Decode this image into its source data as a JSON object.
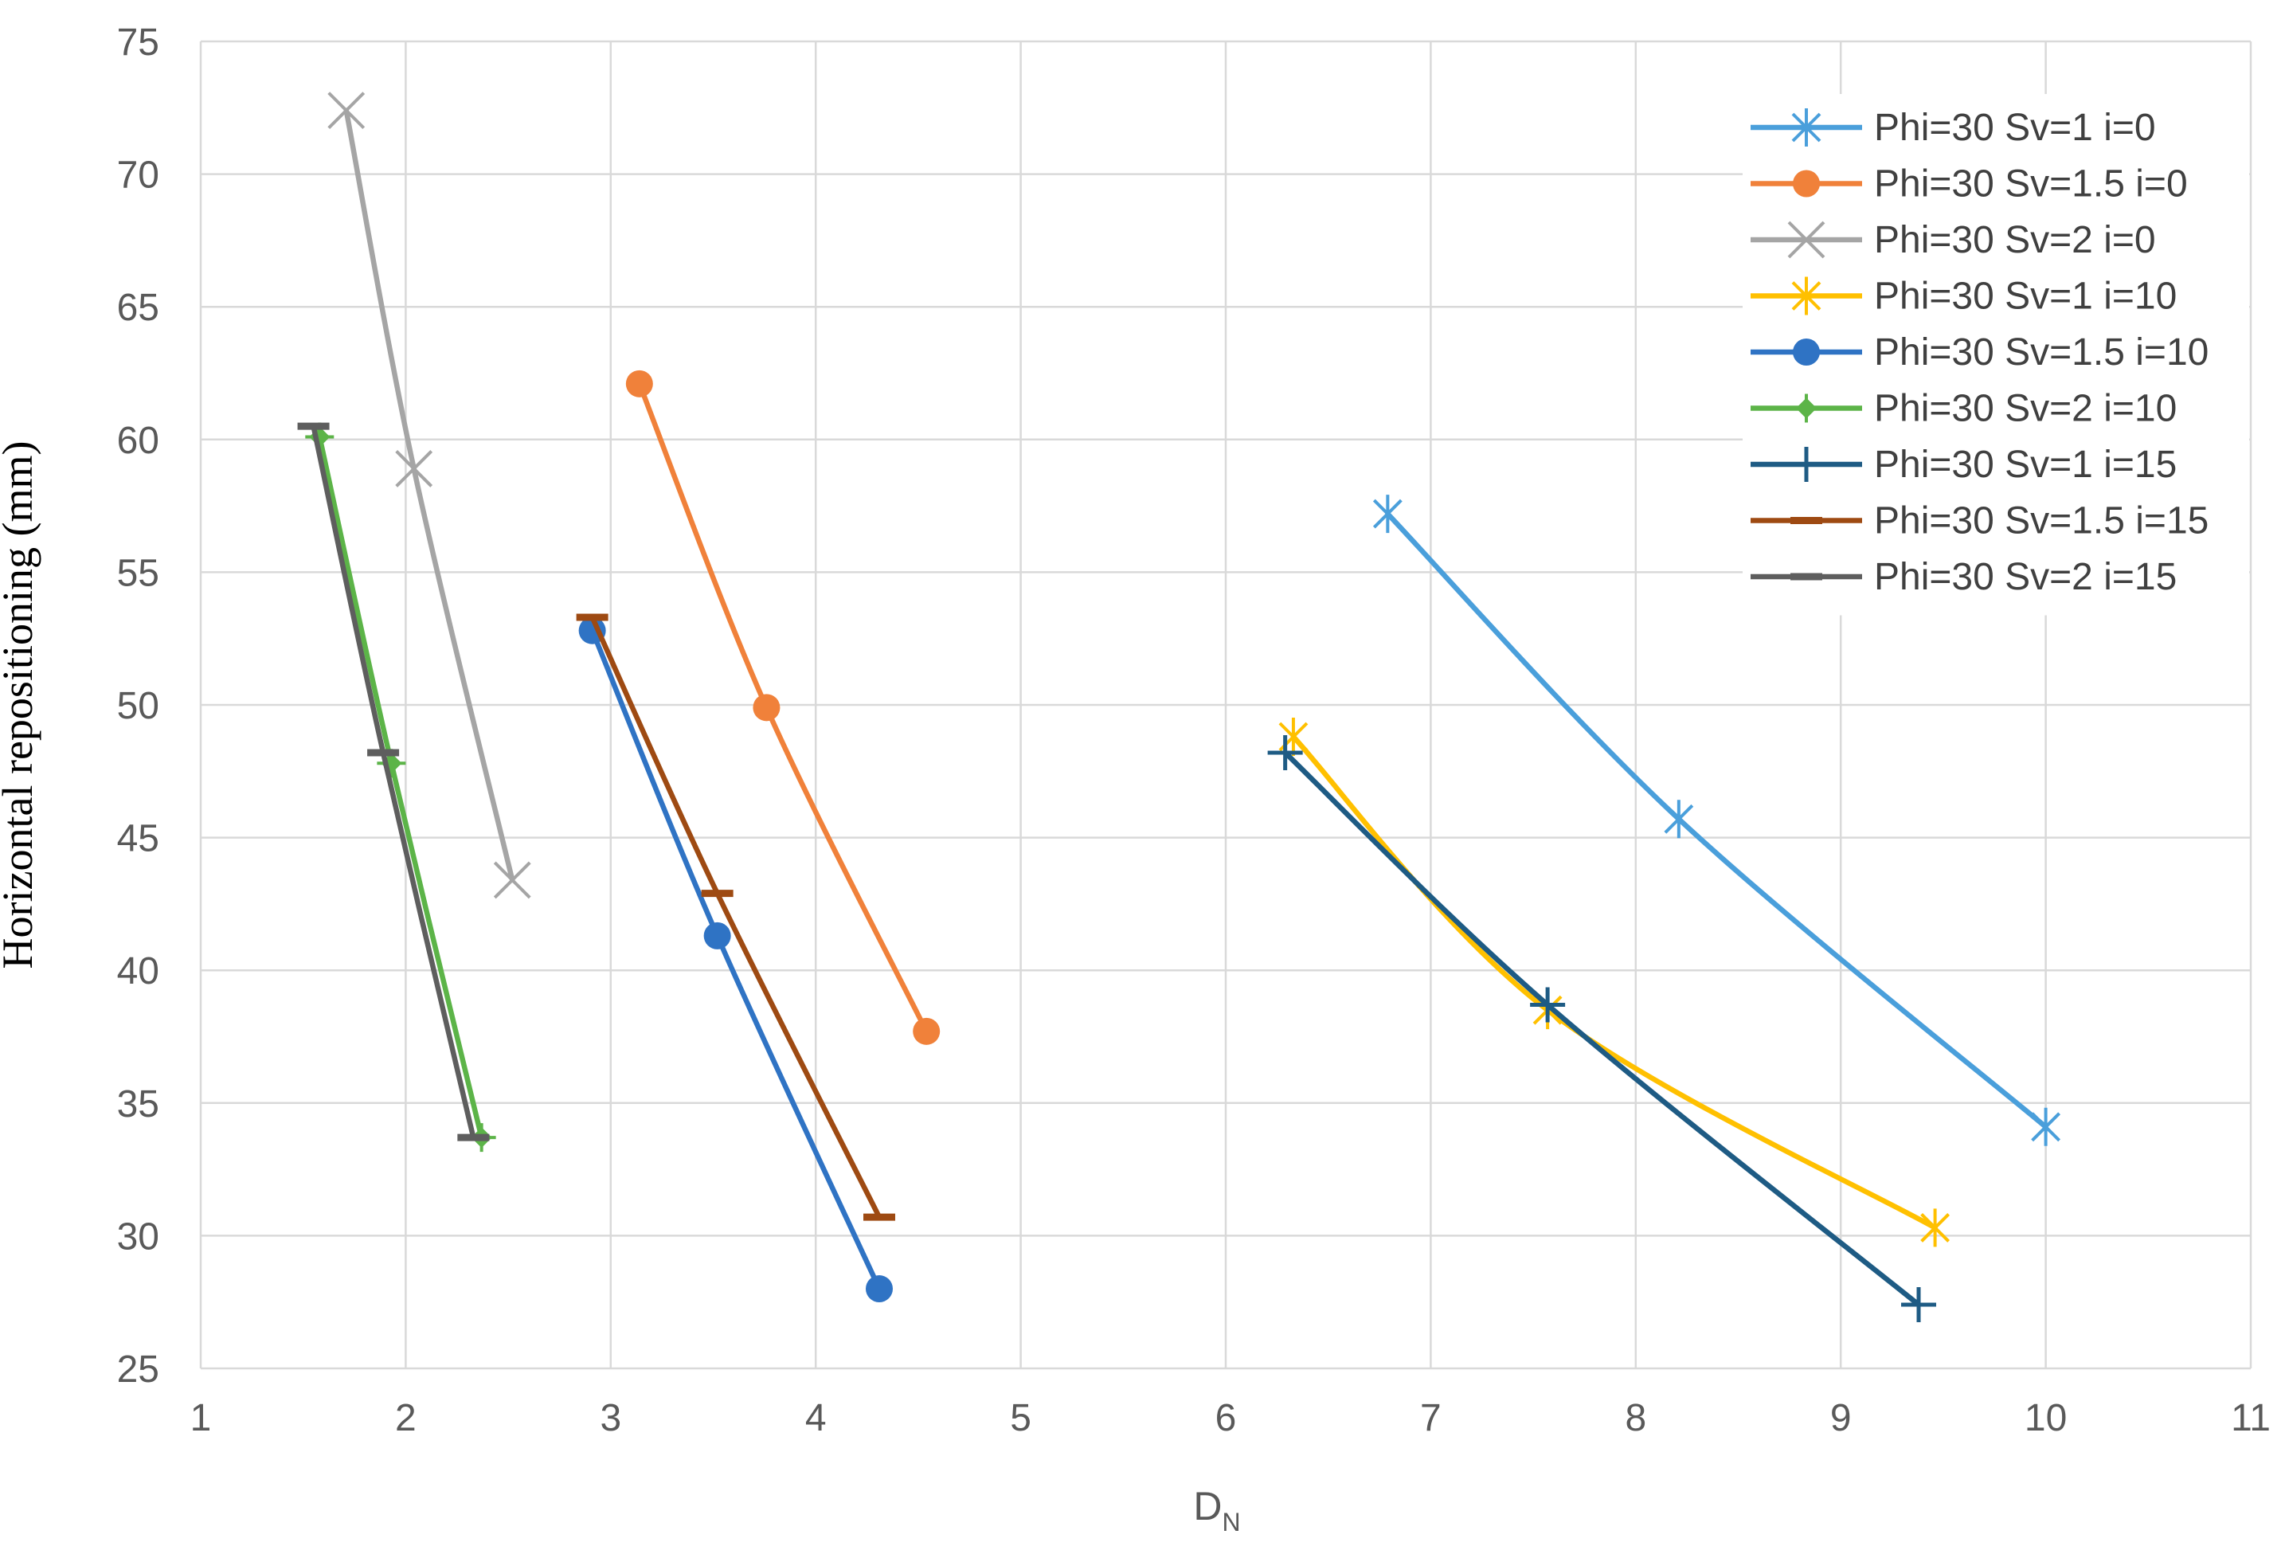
{
  "chart_data": {
    "type": "scatter",
    "title": "",
    "xlabel": "D",
    "xlabel_subscript": "N",
    "ylabel": "Horizontal repositioning (mm)",
    "xlim": [
      1,
      11
    ],
    "ylim": [
      25,
      75
    ],
    "x_ticks": [
      1,
      2,
      3,
      4,
      5,
      6,
      7,
      8,
      9,
      10,
      11
    ],
    "y_ticks": [
      25,
      30,
      35,
      40,
      45,
      50,
      55,
      60,
      65,
      70,
      75
    ],
    "grid": true,
    "legend_position": "top-right",
    "series": [
      {
        "name": "Phi=30 Sv=1 i=0",
        "color": "#4a9fdb",
        "marker": "asterisk",
        "x": [
          6.79,
          8.21,
          10.0
        ],
        "y": [
          57.2,
          45.7,
          34.1
        ]
      },
      {
        "name": "Phi=30 Sv=1.5 i=0",
        "color": "#f0813a",
        "marker": "circle",
        "x": [
          3.14,
          3.76,
          4.54
        ],
        "y": [
          62.1,
          49.9,
          37.7
        ]
      },
      {
        "name": "Phi=30 Sv=2 i=0",
        "color": "#a5a5a5",
        "marker": "x",
        "x": [
          1.71,
          2.04,
          2.52
        ],
        "y": [
          72.4,
          58.9,
          43.4
        ]
      },
      {
        "name": "Phi=30 Sv=1 i=10",
        "color": "#ffc000",
        "marker": "asterisk",
        "x": [
          6.33,
          7.57,
          9.46
        ],
        "y": [
          48.8,
          38.5,
          30.3
        ]
      },
      {
        "name": "Phi=30 Sv=1.5 i=10",
        "color": "#2f73c4",
        "marker": "circle",
        "x": [
          2.91,
          3.52,
          4.31
        ],
        "y": [
          52.8,
          41.3,
          28.0
        ]
      },
      {
        "name": "Phi=30 Sv=2 i=10",
        "color": "#5cb448",
        "marker": "diamond",
        "x": [
          1.58,
          1.93,
          2.37
        ],
        "y": [
          60.1,
          47.8,
          33.7
        ]
      },
      {
        "name": "Phi=30 Sv=1 i=15",
        "color": "#1e5b84",
        "marker": "plus",
        "x": [
          6.29,
          7.57,
          9.38
        ],
        "y": [
          48.2,
          38.7,
          27.4
        ]
      },
      {
        "name": "Phi=30 Sv=1.5 i=15",
        "color": "#9e4a12",
        "marker": "dash",
        "x": [
          2.91,
          3.52,
          4.31
        ],
        "y": [
          53.3,
          42.9,
          30.7
        ]
      },
      {
        "name": "Phi=30 Sv=2 i=15",
        "color": "#5e5e5e",
        "marker": "dash",
        "x": [
          1.55,
          1.89,
          2.33
        ],
        "y": [
          60.5,
          48.2,
          33.7
        ]
      }
    ]
  }
}
